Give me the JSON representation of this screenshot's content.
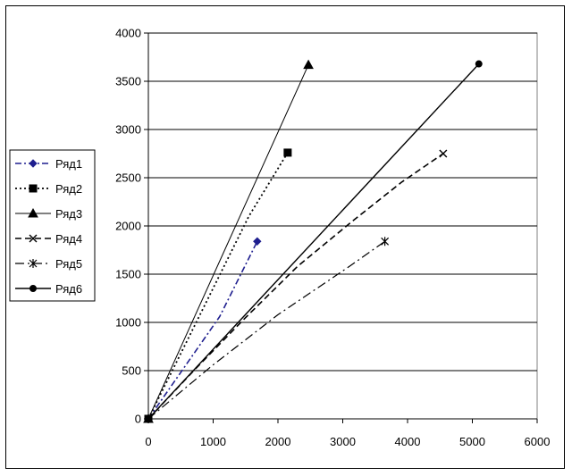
{
  "chart_data": {
    "type": "line",
    "title": "",
    "xlabel": "",
    "ylabel": "",
    "xlim": [
      0,
      6000
    ],
    "ylim": [
      0,
      4000
    ],
    "xticks": [
      0,
      1000,
      2000,
      3000,
      4000,
      5000,
      6000
    ],
    "yticks": [
      0,
      500,
      1000,
      1500,
      2000,
      2500,
      3000,
      3500,
      4000
    ],
    "grid": "horizontal",
    "legend_position": "left",
    "series": [
      {
        "name": "Ряд1",
        "marker": "diamond",
        "dash": "dashdot",
        "color": "#1f1f8f",
        "points": [
          [
            0,
            0
          ],
          [
            1100,
            1060
          ],
          [
            1680,
            1840
          ]
        ]
      },
      {
        "name": "Ряд2",
        "marker": "square",
        "dash": "dotted",
        "color": "#000000",
        "points": [
          [
            0,
            0
          ],
          [
            1550,
            2100
          ],
          [
            2150,
            2760
          ]
        ]
      },
      {
        "name": "Ряд3",
        "marker": "triangle",
        "dash": "solid-thin",
        "color": "#000000",
        "points": [
          [
            0,
            0
          ],
          [
            2470,
            3670
          ]
        ]
      },
      {
        "name": "Ряд4",
        "marker": "x",
        "dash": "dashed",
        "color": "#000000",
        "points": [
          [
            0,
            0
          ],
          [
            700,
            500
          ],
          [
            1500,
            1050
          ],
          [
            2300,
            1580
          ],
          [
            3150,
            2050
          ],
          [
            3900,
            2450
          ],
          [
            4550,
            2750
          ]
        ]
      },
      {
        "name": "Ряд5",
        "marker": "star",
        "dash": "longdashdot",
        "color": "#000000",
        "points": [
          [
            0,
            0
          ],
          [
            1000,
            560
          ],
          [
            2000,
            1080
          ],
          [
            3100,
            1580
          ],
          [
            3650,
            1840
          ]
        ]
      },
      {
        "name": "Ряд6",
        "marker": "circle",
        "dash": "solid",
        "color": "#000000",
        "points": [
          [
            0,
            0
          ],
          [
            5100,
            3680
          ]
        ]
      }
    ]
  }
}
